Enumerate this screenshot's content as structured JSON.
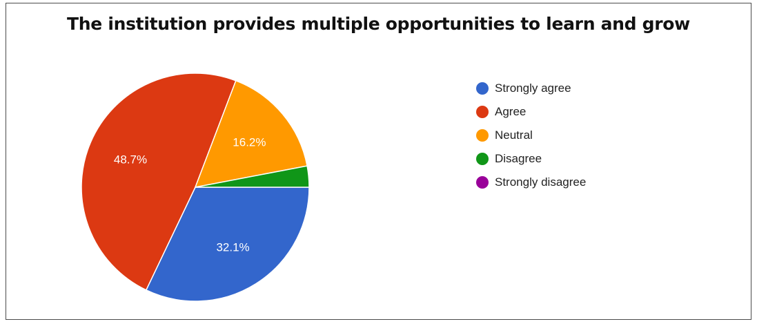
{
  "chart_data": {
    "type": "pie",
    "title": "The institution provides multiple opportunities to learn and grow",
    "legend_position": "right",
    "slices": [
      {
        "label": "Strongly agree",
        "value": 32.1,
        "display": "32.1%",
        "color": "#3366cc"
      },
      {
        "label": "Agree",
        "value": 48.7,
        "display": "48.7%",
        "color": "#dc3912"
      },
      {
        "label": "Neutral",
        "value": 16.2,
        "display": "16.2%",
        "color": "#ff9900"
      },
      {
        "label": "Disagree",
        "value": 3.0,
        "display": "",
        "color": "#109618"
      },
      {
        "label": "Strongly disagree",
        "value": 0,
        "display": "",
        "color": "#990099"
      }
    ]
  }
}
